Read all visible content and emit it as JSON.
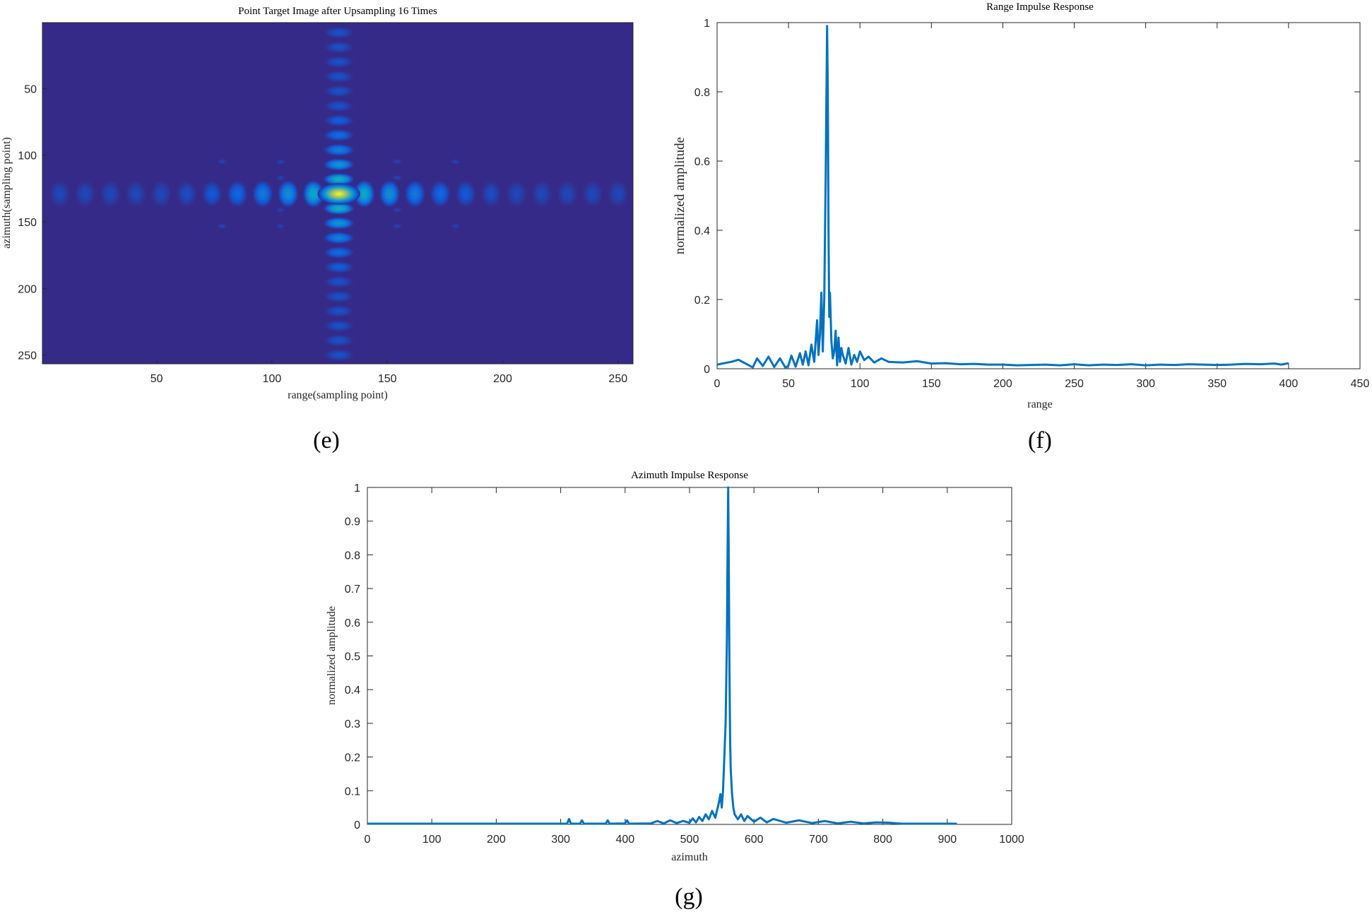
{
  "chart_data": [
    {
      "id": "e",
      "type": "heatmap",
      "title": "Point Target Image after Upsampling 16 Times",
      "xlabel": "range(sampling point)",
      "ylabel": "azimuth(sampling point)",
      "caption": "(e)",
      "xlim": [
        0.5,
        256.5
      ],
      "ylim": [
        0.5,
        256.5
      ],
      "y_reversed": true,
      "xticks": [
        50,
        100,
        150,
        200,
        250
      ],
      "yticks": [
        50,
        100,
        150,
        200,
        250
      ],
      "colormap": "parula",
      "background_color": "#352a87",
      "peak": {
        "x": 129,
        "y": 129,
        "value": 1.0
      },
      "sidelobe_spacing": 11,
      "mainlobe_width_range": 4.2,
      "mainlobe_width_azimuth": 6.2,
      "sidelobe_decay": 0.72
    },
    {
      "id": "f",
      "type": "line",
      "title": "Range Impulse Response",
      "xlabel": "range",
      "ylabel": "normalized amplitude",
      "caption": "(f)",
      "xlim": [
        0,
        450
      ],
      "ylim": [
        0,
        1
      ],
      "xticks": [
        0,
        50,
        100,
        150,
        200,
        250,
        300,
        350,
        400,
        450
      ],
      "yticks": [
        0,
        0.2,
        0.4,
        0.6,
        0.8,
        1
      ],
      "ytick_labels": [
        "0",
        "0.2",
        "0.4",
        "0.6",
        "0.8",
        "1"
      ],
      "line_color": "#0072bd",
      "x": [
        0,
        5,
        10,
        15,
        20,
        25,
        28,
        32,
        36,
        40,
        44,
        48,
        50,
        52,
        55,
        58,
        60,
        62,
        64,
        66,
        68,
        70,
        71,
        72,
        73,
        74,
        75,
        76,
        77,
        77.5,
        78,
        78.5,
        79,
        80,
        81,
        82,
        83,
        84,
        85,
        86,
        87,
        88,
        90,
        92,
        94,
        96,
        98,
        100,
        103,
        106,
        110,
        115,
        120,
        130,
        140,
        150,
        160,
        170,
        180,
        190,
        200,
        210,
        220,
        230,
        240,
        250,
        260,
        270,
        280,
        290,
        300,
        310,
        320,
        330,
        340,
        350,
        360,
        370,
        380,
        390,
        395,
        400
      ],
      "y": [
        0.012,
        0.016,
        0.02,
        0.026,
        0.015,
        0.004,
        0.03,
        0.008,
        0.035,
        0.005,
        0.03,
        0.002,
        0.01,
        0.038,
        0.006,
        0.045,
        0.012,
        0.05,
        0.01,
        0.07,
        0.02,
        0.14,
        0.04,
        0.1,
        0.22,
        0.05,
        0.2,
        0.55,
        0.99,
        0.8,
        0.4,
        0.15,
        0.22,
        0.08,
        0.03,
        0.05,
        0.11,
        0.01,
        0.09,
        0.02,
        0.06,
        0.04,
        0.015,
        0.06,
        0.012,
        0.04,
        0.02,
        0.05,
        0.025,
        0.035,
        0.018,
        0.03,
        0.02,
        0.018,
        0.022,
        0.015,
        0.016,
        0.013,
        0.014,
        0.012,
        0.012,
        0.01,
        0.011,
        0.012,
        0.01,
        0.013,
        0.01,
        0.012,
        0.011,
        0.013,
        0.01,
        0.012,
        0.011,
        0.013,
        0.012,
        0.011,
        0.012,
        0.014,
        0.013,
        0.015,
        0.012,
        0.016
      ]
    },
    {
      "id": "g",
      "type": "line",
      "title": "Azimuth Impulse Response",
      "xlabel": "azimuth",
      "ylabel": "normalized amplitude",
      "caption": "(g)",
      "xlim": [
        0,
        1000
      ],
      "ylim": [
        0,
        1
      ],
      "xticks": [
        0,
        100,
        200,
        300,
        400,
        500,
        600,
        700,
        800,
        900,
        1000
      ],
      "yticks": [
        0,
        0.1,
        0.2,
        0.3,
        0.4,
        0.5,
        0.6,
        0.7,
        0.8,
        0.9,
        1
      ],
      "ytick_labels": [
        "0",
        "0.1",
        "0.2",
        "0.3",
        "0.4",
        "0.5",
        "0.6",
        "0.7",
        "0.8",
        "0.9",
        "1"
      ],
      "line_color": "#0072bd",
      "x": [
        0,
        100,
        200,
        300,
        310,
        313,
        316,
        330,
        333,
        336,
        370,
        373,
        376,
        400,
        403,
        406,
        440,
        450,
        460,
        470,
        480,
        490,
        500,
        505,
        510,
        515,
        520,
        525,
        530,
        535,
        540,
        545,
        548,
        550,
        552,
        554,
        556,
        558,
        559,
        560,
        561,
        562,
        563,
        564,
        566,
        568,
        570,
        575,
        580,
        585,
        590,
        600,
        610,
        620,
        630,
        650,
        670,
        690,
        710,
        730,
        750,
        770,
        790,
        810,
        830,
        860,
        900,
        915
      ],
      "y": [
        0.002,
        0.002,
        0.002,
        0.002,
        0.002,
        0.016,
        0.002,
        0.002,
        0.012,
        0.002,
        0.002,
        0.012,
        0.002,
        0.003,
        0.012,
        0.002,
        0.003,
        0.01,
        0.003,
        0.012,
        0.004,
        0.01,
        0.005,
        0.018,
        0.006,
        0.022,
        0.01,
        0.03,
        0.015,
        0.04,
        0.02,
        0.06,
        0.09,
        0.05,
        0.1,
        0.2,
        0.3,
        0.55,
        0.8,
        1.0,
        0.75,
        0.45,
        0.25,
        0.16,
        0.09,
        0.05,
        0.03,
        0.015,
        0.03,
        0.01,
        0.025,
        0.008,
        0.02,
        0.006,
        0.016,
        0.005,
        0.012,
        0.004,
        0.01,
        0.003,
        0.008,
        0.003,
        0.006,
        0.005,
        0.002,
        0.002,
        0.002,
        0.002
      ]
    }
  ]
}
